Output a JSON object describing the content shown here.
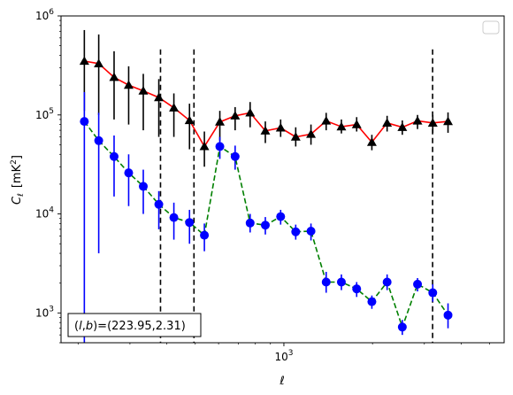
{
  "chart_data": {
    "type": "scatter",
    "xlabel": "ℓ",
    "ylabel_main": "C",
    "ylabel_sub": "ℓ",
    "ylabel_unit": "[mK",
    "ylabel_unit_sup": "2",
    "ylabel_unit_close": "]",
    "xscale": "log",
    "yscale": "log",
    "xlim": [
      175,
      5600
    ],
    "ylim": [
      500,
      1000000
    ],
    "x_tick_labels": [
      {
        "base": "10",
        "exp": "3",
        "value": 1000
      }
    ],
    "y_tick_labels": [
      {
        "base": "10",
        "exp": "3",
        "value": 1000
      },
      {
        "base": "10",
        "exp": "4",
        "value": 10000
      },
      {
        "base": "10",
        "exp": "5",
        "value": 100000
      },
      {
        "base": "10",
        "exp": "6",
        "value": 1000000
      }
    ],
    "legend": "top-right (empty)",
    "vlines": [
      381,
      495,
      3200
    ],
    "annotation": {
      "prefix": "(",
      "l": "l",
      "comma": ",",
      "b": "b",
      "suffix": ")=(223.95,2.31)"
    },
    "series": [
      {
        "color": "#ff0000",
        "marker_color": "#000000",
        "error_color": "#000000",
        "marker": "triangle",
        "line_style": "solid",
        "points": [
          {
            "x": 210,
            "y": 350000,
            "lo": 110000,
            "hi": 720000
          },
          {
            "x": 235,
            "y": 330000,
            "lo": 100000,
            "hi": 650000
          },
          {
            "x": 265,
            "y": 240000,
            "lo": 90000,
            "hi": 440000
          },
          {
            "x": 297,
            "y": 200000,
            "lo": 80000,
            "hi": 310000
          },
          {
            "x": 333,
            "y": 175000,
            "lo": 70000,
            "hi": 260000
          },
          {
            "x": 376,
            "y": 150000,
            "lo": 60000,
            "hi": 230000
          },
          {
            "x": 423,
            "y": 118000,
            "lo": 60000,
            "hi": 165000
          },
          {
            "x": 478,
            "y": 88000,
            "lo": 45000,
            "hi": 130000
          },
          {
            "x": 537,
            "y": 48000,
            "lo": 30000,
            "hi": 68000
          },
          {
            "x": 606,
            "y": 85000,
            "lo": 55000,
            "hi": 110000
          },
          {
            "x": 683,
            "y": 98000,
            "lo": 70000,
            "hi": 120000
          },
          {
            "x": 768,
            "y": 105000,
            "lo": 75000,
            "hi": 135000
          },
          {
            "x": 865,
            "y": 69000,
            "lo": 52000,
            "hi": 86000
          },
          {
            "x": 975,
            "y": 74000,
            "lo": 60000,
            "hi": 90000
          },
          {
            "x": 1097,
            "y": 60000,
            "lo": 48000,
            "hi": 75000
          },
          {
            "x": 1236,
            "y": 64000,
            "lo": 50000,
            "hi": 80000
          },
          {
            "x": 1392,
            "y": 87000,
            "lo": 70000,
            "hi": 105000
          },
          {
            "x": 1568,
            "y": 76000,
            "lo": 65000,
            "hi": 90000
          },
          {
            "x": 1767,
            "y": 80000,
            "lo": 68000,
            "hi": 95000
          },
          {
            "x": 1990,
            "y": 53000,
            "lo": 44000,
            "hi": 63000
          },
          {
            "x": 2242,
            "y": 83000,
            "lo": 68000,
            "hi": 98000
          },
          {
            "x": 2525,
            "y": 75000,
            "lo": 63000,
            "hi": 88000
          },
          {
            "x": 2844,
            "y": 87000,
            "lo": 72000,
            "hi": 100000
          },
          {
            "x": 3204,
            "y": 83000,
            "lo": 66000,
            "hi": 100000
          },
          {
            "x": 3610,
            "y": 86000,
            "lo": 66000,
            "hi": 106000
          }
        ]
      },
      {
        "color": "#008000",
        "marker_color": "#0000ff",
        "error_color": "#0000ff",
        "marker": "circle",
        "line_style": "dashed",
        "points": [
          {
            "x": 210,
            "y": 86000,
            "lo": 500,
            "hi": 170000
          },
          {
            "x": 235,
            "y": 55000,
            "lo": 4000,
            "hi": 105000
          },
          {
            "x": 265,
            "y": 38000,
            "lo": 15000,
            "hi": 62000
          },
          {
            "x": 297,
            "y": 26000,
            "lo": 12000,
            "hi": 40000
          },
          {
            "x": 333,
            "y": 19000,
            "lo": 10000,
            "hi": 28000
          },
          {
            "x": 376,
            "y": 12500,
            "lo": 7000,
            "hi": 17000
          },
          {
            "x": 423,
            "y": 9200,
            "lo": 5500,
            "hi": 13000
          },
          {
            "x": 478,
            "y": 8200,
            "lo": 5000,
            "hi": 11000
          },
          {
            "x": 537,
            "y": 6100,
            "lo": 4200,
            "hi": 8000
          },
          {
            "x": 606,
            "y": 48000,
            "lo": 36000,
            "hi": 60000
          },
          {
            "x": 683,
            "y": 38000,
            "lo": 28000,
            "hi": 49000
          },
          {
            "x": 768,
            "y": 8100,
            "lo": 6500,
            "hi": 10000
          },
          {
            "x": 865,
            "y": 7700,
            "lo": 6200,
            "hi": 9300
          },
          {
            "x": 975,
            "y": 9400,
            "lo": 7800,
            "hi": 11000
          },
          {
            "x": 1097,
            "y": 6600,
            "lo": 5500,
            "hi": 7800
          },
          {
            "x": 1236,
            "y": 6700,
            "lo": 5400,
            "hi": 8000
          },
          {
            "x": 1392,
            "y": 2050,
            "lo": 1600,
            "hi": 2600
          },
          {
            "x": 1568,
            "y": 2050,
            "lo": 1700,
            "hi": 2450
          },
          {
            "x": 1767,
            "y": 1750,
            "lo": 1450,
            "hi": 2050
          },
          {
            "x": 1990,
            "y": 1300,
            "lo": 1100,
            "hi": 1500
          },
          {
            "x": 2242,
            "y": 2050,
            "lo": 1700,
            "hi": 2450
          },
          {
            "x": 2525,
            "y": 720,
            "lo": 600,
            "hi": 850
          },
          {
            "x": 2844,
            "y": 1950,
            "lo": 1650,
            "hi": 2250
          },
          {
            "x": 3204,
            "y": 1600,
            "lo": 1300,
            "hi": 1950
          },
          {
            "x": 3610,
            "y": 950,
            "lo": 700,
            "hi": 1250
          }
        ]
      }
    ]
  }
}
